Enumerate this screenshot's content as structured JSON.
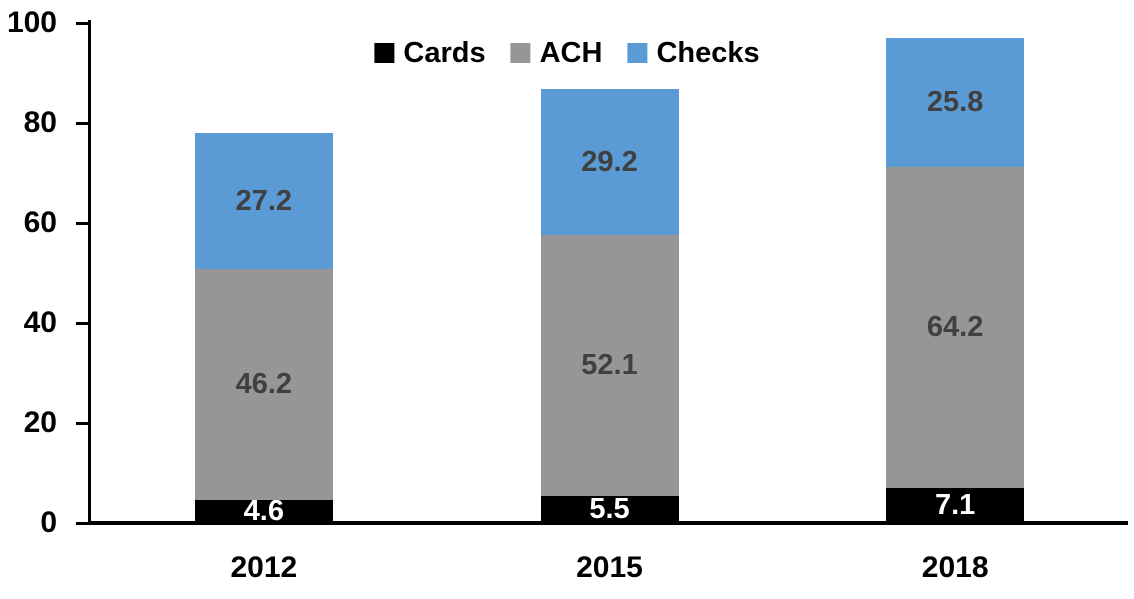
{
  "chart_data": {
    "type": "bar",
    "stacked": true,
    "title": "",
    "categories": [
      "2012",
      "2015",
      "2018"
    ],
    "series": [
      {
        "name": "Cards",
        "color": "#000000",
        "label_color": "#ffffff",
        "values": [
          4.6,
          5.5,
          7.1
        ]
      },
      {
        "name": "ACH",
        "color": "#969696",
        "label_color": "#404040",
        "values": [
          46.2,
          52.1,
          64.2
        ]
      },
      {
        "name": "Checks",
        "color": "#5b9bd5",
        "label_color": "#404040",
        "values": [
          27.2,
          29.2,
          25.8
        ]
      }
    ],
    "y_axis": {
      "min": 0,
      "max": 100,
      "tick_interval": 20,
      "tick_labels": [
        "0",
        "20",
        "40",
        "60",
        "80",
        "100"
      ]
    },
    "legend": {
      "position": "top-center",
      "entries": [
        "Cards",
        "ACH",
        "Checks"
      ]
    },
    "grid": false,
    "axis_color": "#000000",
    "background": "#ffffff"
  }
}
